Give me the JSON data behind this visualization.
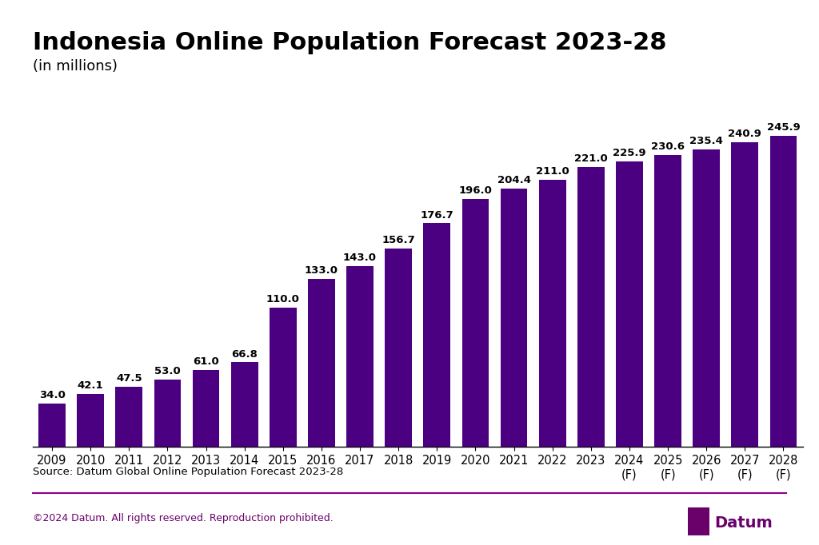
{
  "title": "Indonesia Online Population Forecast 2023-28",
  "subtitle": "(in millions)",
  "years": [
    "2009",
    "2010",
    "2011",
    "2012",
    "2013",
    "2014",
    "2015",
    "2016",
    "2017",
    "2018",
    "2019",
    "2020",
    "2021",
    "2022",
    "2023",
    "2024\n(F)",
    "2025\n(F)",
    "2026\n(F)",
    "2027\n(F)",
    "2028\n(F)"
  ],
  "values": [
    34.0,
    42.1,
    47.5,
    53.0,
    61.0,
    66.8,
    110.0,
    133.0,
    143.0,
    156.7,
    176.7,
    196.0,
    204.4,
    211.0,
    221.0,
    225.9,
    230.6,
    235.4,
    240.9,
    245.9
  ],
  "bar_color": "#4B0082",
  "forecast_bar_color": "#4B0082",
  "background_color": "#ffffff",
  "title_fontsize": 22,
  "subtitle_fontsize": 13,
  "label_fontsize": 9.5,
  "tick_fontsize": 10.5,
  "source_text": "Source: Datum Global Online Population Forecast 2023-28",
  "footer_left": "©2024 Datum. All rights reserved. Reproduction prohibited.",
  "footer_color": "#6a006a",
  "separator_color": "#8B008B",
  "ylim": [
    0,
    280
  ]
}
